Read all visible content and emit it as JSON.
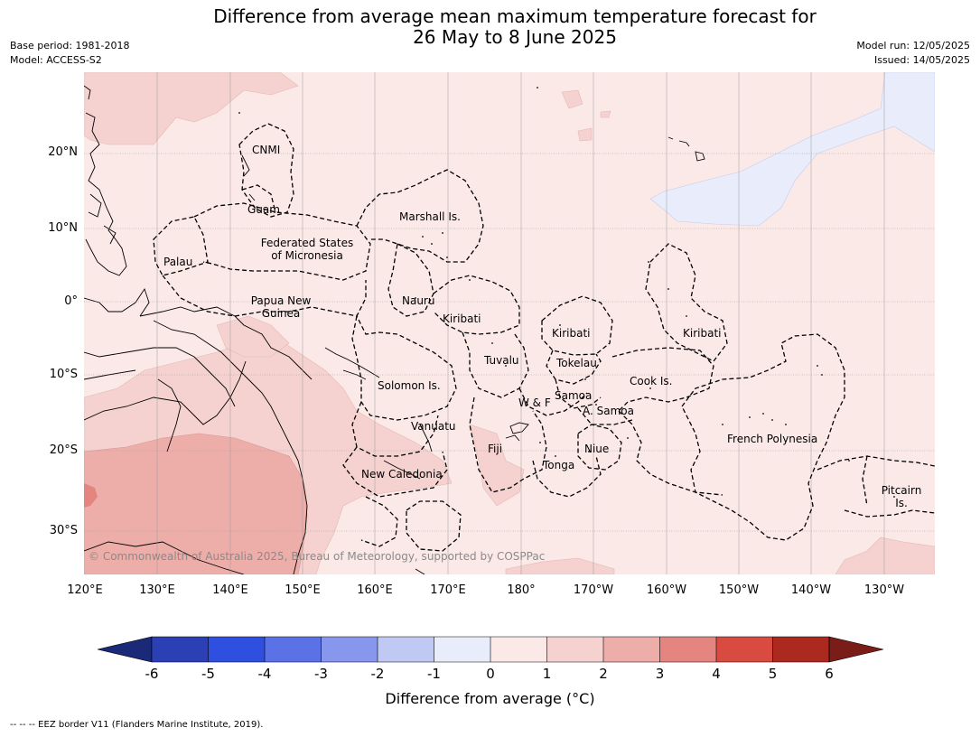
{
  "title_line1": "Difference from average mean maximum temperature forecast for",
  "title_line2": "26 May to 8 June 2025",
  "base_period": "Base period: 1981-2018",
  "model": "Model: ACCESS-S2",
  "model_run": "Model run: 12/05/2025",
  "issued": "Issued: 14/05/2025",
  "lat_labels": [
    "20°N",
    "10°N",
    "0°",
    "10°S",
    "20°S",
    "30°S"
  ],
  "lon_labels": [
    "120°E",
    "130°E",
    "140°E",
    "150°E",
    "160°E",
    "170°E",
    "180°",
    "170°W",
    "160°W",
    "150°W",
    "140°W",
    "130°W"
  ],
  "copyright": "© Commonwealth of Australia 2025, Bureau of Meteorology, supported by COSPPac",
  "region_labels": {
    "cnmi": "CNMI",
    "guam": "Guam",
    "marshall": "Marshall Is.",
    "fsm_1": "Federated States",
    "fsm_2": "of Micronesia",
    "palau": "Palau",
    "png_1": "Papua New",
    "png_2": "Guinea",
    "nauru": "Nauru",
    "kiribati_w": "Kiribati",
    "kiribati_c": "Kiribati",
    "kiribati_e": "Kiribati",
    "tuvalu": "Tuvalu",
    "tokelau": "Tokelau",
    "solomon": "Solomon Is.",
    "cook": "Cook Is.",
    "samoa": "Samoa",
    "wf": "W & F",
    "asamoa": "A. Samoa",
    "vanuatu": "Vanuatu",
    "fiji": "Fiji",
    "niue": "Niue",
    "tonga": "Tonga",
    "newcal": "New Caledonia",
    "fp": "French Polynesia",
    "pitcairn_1": "Pitcairn",
    "pitcairn_2": "Is."
  },
  "colorbar": {
    "ticks": [
      "-6",
      "-5",
      "-4",
      "-3",
      "-2",
      "-1",
      "0",
      "1",
      "2",
      "3",
      "4",
      "5",
      "6"
    ],
    "colors": [
      "#1b2a78",
      "#2b40b5",
      "#2f4fe0",
      "#5a72e6",
      "#8797ee",
      "#c0c8f4",
      "#e8ecfb",
      "#fbe9e8",
      "#f5d2cf",
      "#edaeaa",
      "#e58580",
      "#d94a40",
      "#ac2920",
      "#7a1c18"
    ],
    "label": "Difference from average ($^\\circ$C)",
    "label_display": "Difference from average (°C)"
  },
  "footer": "--  --  -- EEZ border V11 (Flanders Marine Institute, 2019)."
}
